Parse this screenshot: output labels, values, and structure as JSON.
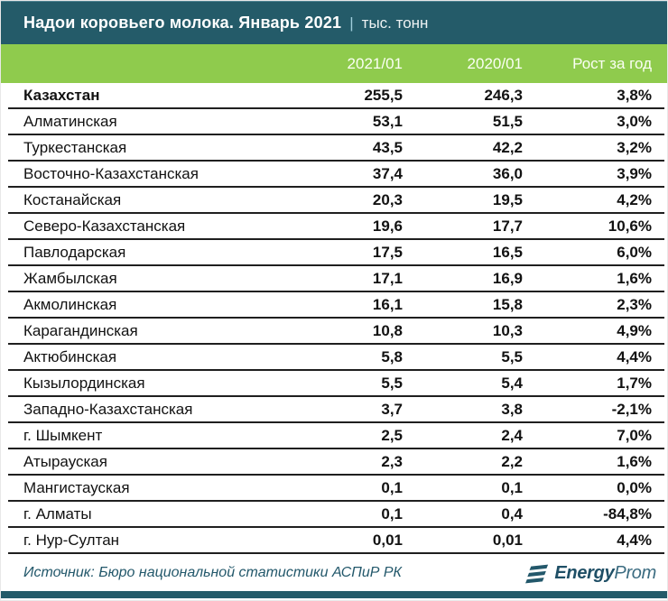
{
  "title": {
    "main": "Надои коровьего молока. Январь 2021",
    "separator": "|",
    "unit": "тыс. тонн"
  },
  "chart_data": {
    "type": "table",
    "title": "Надои коровьего молока. Январь 2021",
    "unit": "тыс. тонн",
    "columns": [
      "2021/01",
      "2020/01",
      "Рост за год"
    ],
    "rows": [
      {
        "region": "Казахстан",
        "v2021": "255,5",
        "v2020": "246,3",
        "growth": "3,8%",
        "bold": true
      },
      {
        "region": "Алматинская",
        "v2021": "53,1",
        "v2020": "51,5",
        "growth": "3,0%",
        "bold": false
      },
      {
        "region": "Туркестанская",
        "v2021": "43,5",
        "v2020": "42,2",
        "growth": "3,2%",
        "bold": false
      },
      {
        "region": "Восточно-Казахстанская",
        "v2021": "37,4",
        "v2020": "36,0",
        "growth": "3,9%",
        "bold": false
      },
      {
        "region": "Костанайская",
        "v2021": "20,3",
        "v2020": "19,5",
        "growth": "4,2%",
        "bold": false
      },
      {
        "region": "Северо-Казахстанская",
        "v2021": "19,6",
        "v2020": "17,7",
        "growth": "10,6%",
        "bold": false
      },
      {
        "region": "Павлодарская",
        "v2021": "17,5",
        "v2020": "16,5",
        "growth": "6,0%",
        "bold": false
      },
      {
        "region": "Жамбылская",
        "v2021": "17,1",
        "v2020": "16,9",
        "growth": "1,6%",
        "bold": false
      },
      {
        "region": "Акмолинская",
        "v2021": "16,1",
        "v2020": "15,8",
        "growth": "2,3%",
        "bold": false
      },
      {
        "region": "Карагандинская",
        "v2021": "10,8",
        "v2020": "10,3",
        "growth": "4,9%",
        "bold": false
      },
      {
        "region": "Актюбинская",
        "v2021": "5,8",
        "v2020": "5,5",
        "growth": "4,4%",
        "bold": false
      },
      {
        "region": "Кызылординская",
        "v2021": "5,5",
        "v2020": "5,4",
        "growth": "1,7%",
        "bold": false
      },
      {
        "region": "Западно-Казахстанская",
        "v2021": "3,7",
        "v2020": "3,8",
        "growth": "-2,1%",
        "bold": false
      },
      {
        "region": "г. Шымкент",
        "v2021": "2,5",
        "v2020": "2,4",
        "growth": "7,0%",
        "bold": false
      },
      {
        "region": "Атырауская",
        "v2021": "2,3",
        "v2020": "2,2",
        "growth": "1,6%",
        "bold": false
      },
      {
        "region": "Мангистауская",
        "v2021": "0,1",
        "v2020": "0,1",
        "growth": "0,0%",
        "bold": false
      },
      {
        "region": "г. Алматы",
        "v2021": "0,1",
        "v2020": "0,4",
        "growth": "-84,8%",
        "bold": false
      },
      {
        "region": "г. Нур-Султан",
        "v2021": "0,01",
        "v2020": "0,01",
        "growth": "4,4%",
        "bold": false
      }
    ]
  },
  "footer": {
    "source": "Источник: Бюро национальной статистики АСПиР РК",
    "logo_bold": "Energy",
    "logo_light": "Prom"
  },
  "colors": {
    "header_teal": "#245B69",
    "header_green": "#8FCB4D",
    "row_line": "#1F1F1F",
    "source_text": "#23586B",
    "title_text": "#FFFFFF"
  }
}
